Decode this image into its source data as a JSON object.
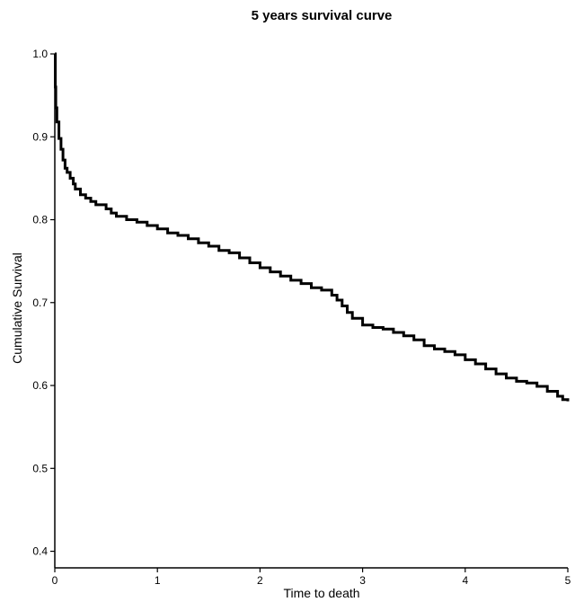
{
  "chart_data": {
    "type": "line",
    "title": "5 years survival curve",
    "xlabel": "Time to death",
    "ylabel": "Cumulative Survival",
    "xlim": [
      0,
      5
    ],
    "ylim": [
      0.38,
      1.0
    ],
    "x_ticks": [
      {
        "value": 0,
        "label": "0"
      },
      {
        "value": 1,
        "label": "1"
      },
      {
        "value": 2,
        "label": "2"
      },
      {
        "value": 3,
        "label": "3"
      },
      {
        "value": 4,
        "label": "4"
      },
      {
        "value": 5,
        "label": "5"
      }
    ],
    "y_ticks": [
      {
        "value": 0.4,
        "label": "0.4"
      },
      {
        "value": 0.5,
        "label": "0.5"
      },
      {
        "value": 0.6,
        "label": "0.6"
      },
      {
        "value": 0.7,
        "label": "0.7"
      },
      {
        "value": 0.8,
        "label": "0.8"
      },
      {
        "value": 0.9,
        "label": "0.9"
      },
      {
        "value": 1.0,
        "label": "1.0"
      }
    ],
    "grid": false,
    "line_color": "#000000",
    "series": [
      {
        "step": true,
        "points": [
          [
            0.0,
            1.0
          ],
          [
            0.005,
            0.96
          ],
          [
            0.01,
            0.935
          ],
          [
            0.02,
            0.918
          ],
          [
            0.04,
            0.898
          ],
          [
            0.06,
            0.885
          ],
          [
            0.08,
            0.872
          ],
          [
            0.1,
            0.862
          ],
          [
            0.12,
            0.857
          ],
          [
            0.15,
            0.85
          ],
          [
            0.18,
            0.843
          ],
          [
            0.2,
            0.837
          ],
          [
            0.25,
            0.83
          ],
          [
            0.3,
            0.826
          ],
          [
            0.35,
            0.822
          ],
          [
            0.4,
            0.818
          ],
          [
            0.5,
            0.813
          ],
          [
            0.55,
            0.808
          ],
          [
            0.6,
            0.804
          ],
          [
            0.7,
            0.8
          ],
          [
            0.8,
            0.797
          ],
          [
            0.9,
            0.793
          ],
          [
            1.0,
            0.789
          ],
          [
            1.1,
            0.784
          ],
          [
            1.2,
            0.781
          ],
          [
            1.3,
            0.777
          ],
          [
            1.4,
            0.772
          ],
          [
            1.5,
            0.768
          ],
          [
            1.6,
            0.763
          ],
          [
            1.7,
            0.76
          ],
          [
            1.8,
            0.754
          ],
          [
            1.9,
            0.748
          ],
          [
            2.0,
            0.742
          ],
          [
            2.1,
            0.737
          ],
          [
            2.2,
            0.732
          ],
          [
            2.3,
            0.727
          ],
          [
            2.4,
            0.723
          ],
          [
            2.5,
            0.718
          ],
          [
            2.6,
            0.715
          ],
          [
            2.7,
            0.709
          ],
          [
            2.75,
            0.703
          ],
          [
            2.8,
            0.696
          ],
          [
            2.85,
            0.688
          ],
          [
            2.9,
            0.681
          ],
          [
            3.0,
            0.673
          ],
          [
            3.1,
            0.67
          ],
          [
            3.2,
            0.668
          ],
          [
            3.3,
            0.664
          ],
          [
            3.4,
            0.66
          ],
          [
            3.5,
            0.655
          ],
          [
            3.6,
            0.648
          ],
          [
            3.7,
            0.644
          ],
          [
            3.8,
            0.641
          ],
          [
            3.9,
            0.637
          ],
          [
            4.0,
            0.631
          ],
          [
            4.1,
            0.626
          ],
          [
            4.2,
            0.62
          ],
          [
            4.3,
            0.614
          ],
          [
            4.4,
            0.609
          ],
          [
            4.5,
            0.605
          ],
          [
            4.6,
            0.603
          ],
          [
            4.7,
            0.599
          ],
          [
            4.8,
            0.593
          ],
          [
            4.9,
            0.587
          ],
          [
            4.95,
            0.583
          ],
          [
            5.0,
            0.581
          ]
        ]
      }
    ]
  }
}
